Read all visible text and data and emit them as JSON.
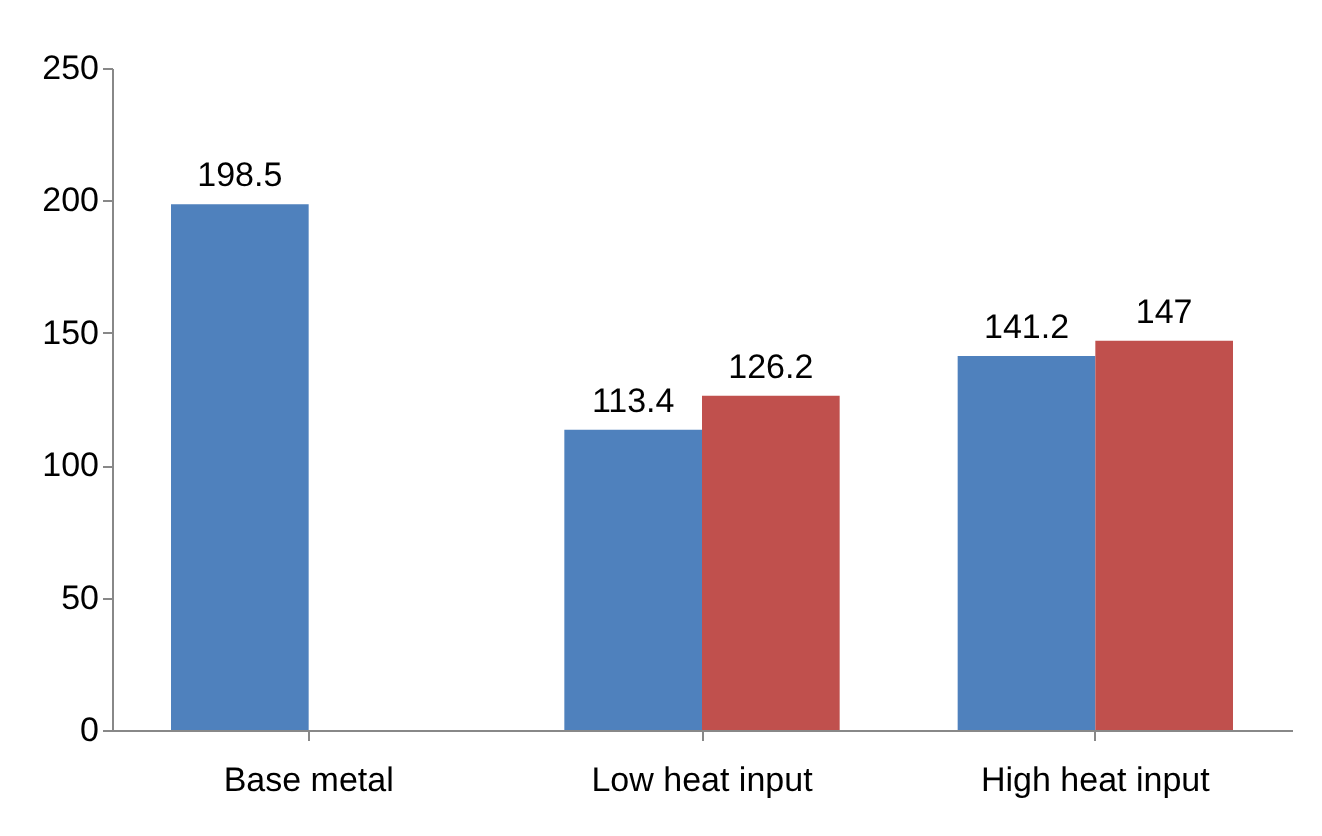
{
  "chart_data": {
    "type": "bar",
    "categories": [
      "Base metal",
      "Low heat input",
      "High heat input"
    ],
    "series": [
      {
        "color": "#4f81bd",
        "values": [
          198.5,
          113.4,
          141.2
        ]
      },
      {
        "color": "#c0504d",
        "values": [
          null,
          126.2,
          147
        ]
      }
    ],
    "ylim": [
      0,
      250
    ],
    "yticks": [
      0,
      50,
      100,
      150,
      200,
      250
    ],
    "grid": false,
    "legend": false,
    "data_labels": true
  }
}
